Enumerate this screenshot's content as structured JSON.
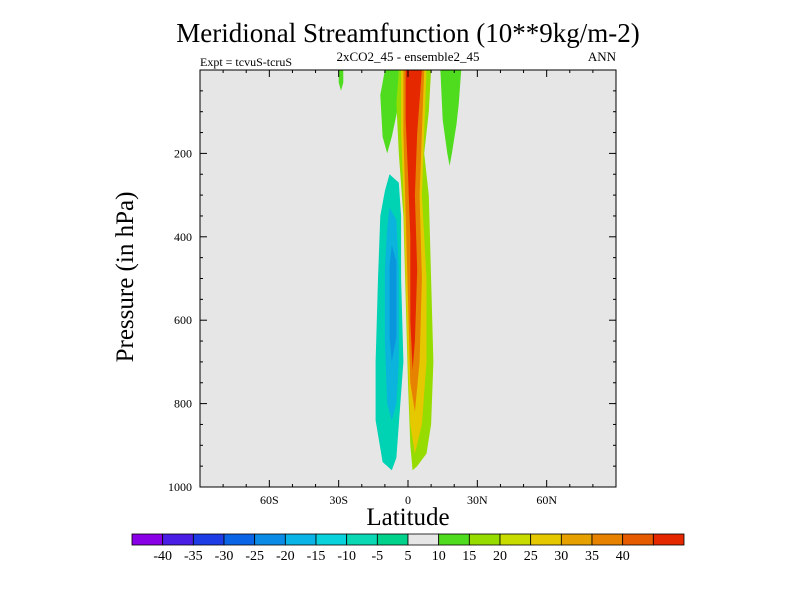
{
  "chart_data": {
    "type": "heatmap",
    "title": "Meridional Streamfunction (10**9kg/m-2)",
    "subtitle_center": "2xCO2_45 - ensemble2_45",
    "subtitle_left": "Expt = tcvuS-tcruS",
    "subtitle_right": "ANN",
    "xlabel": "Latitude",
    "ylabel": "Pressure (in hPa)",
    "xlim": [
      -90,
      90
    ],
    "ylim": [
      1000,
      0
    ],
    "y_inverted": true,
    "background_color": "#e6e6e6",
    "x_ticks": [
      {
        "value": -60,
        "label": "60S"
      },
      {
        "value": -30,
        "label": "30S"
      },
      {
        "value": 0,
        "label": "0"
      },
      {
        "value": 30,
        "label": "30N"
      },
      {
        "value": 60,
        "label": "60N"
      }
    ],
    "y_ticks": [
      {
        "value": 200,
        "label": "200"
      },
      {
        "value": 400,
        "label": "400"
      },
      {
        "value": 600,
        "label": "600"
      },
      {
        "value": 800,
        "label": "800"
      },
      {
        "value": 1000,
        "label": "1000"
      }
    ],
    "colorbar": {
      "levels": [
        -40,
        -35,
        -30,
        -25,
        -20,
        -15,
        -10,
        -5,
        5,
        10,
        15,
        20,
        25,
        30,
        35,
        40
      ],
      "labels": [
        "-40",
        "-35",
        "-30",
        "-25",
        "-20",
        "-15",
        "-10",
        "-5",
        "5",
        "10",
        "15",
        "20",
        "25",
        "30",
        "35",
        "40"
      ],
      "colors": [
        "#8a00e6",
        "#4b1ee6",
        "#1e3ce6",
        "#0a64e6",
        "#0a8ce6",
        "#0ab4e6",
        "#0ad2dc",
        "#0ad7b4",
        "#00d28c",
        "#e6e6e6",
        "#50dc1e",
        "#96dc00",
        "#c8dc00",
        "#e6c800",
        "#e6a000",
        "#e68200",
        "#e65a00",
        "#e62800"
      ]
    },
    "regions": [
      {
        "name": "southern negative cell",
        "value": -10,
        "color": "#00d2b4",
        "outline": [
          [
            -8,
            250
          ],
          [
            -4,
            270
          ],
          [
            -3,
            350
          ],
          [
            -3,
            500
          ],
          [
            -2,
            700
          ],
          [
            -4,
            850
          ],
          [
            -5,
            930
          ],
          [
            -7,
            960
          ],
          [
            -11,
            940
          ],
          [
            -14,
            840
          ],
          [
            -14,
            700
          ],
          [
            -13,
            500
          ],
          [
            -12,
            350
          ],
          [
            -10,
            290
          ]
        ]
      },
      {
        "name": "southern negative core",
        "value": -15,
        "color": "#0ab4dc",
        "outline": [
          [
            -8,
            330
          ],
          [
            -5,
            360
          ],
          [
            -4,
            480
          ],
          [
            -4,
            700
          ],
          [
            -5,
            800
          ],
          [
            -7,
            840
          ],
          [
            -9,
            800
          ],
          [
            -10,
            650
          ],
          [
            -10,
            480
          ],
          [
            -9,
            380
          ]
        ]
      },
      {
        "name": "southern negative inner core",
        "value": -20,
        "color": "#0a96dc",
        "outline": [
          [
            -7,
            420
          ],
          [
            -5,
            460
          ],
          [
            -5,
            640
          ],
          [
            -7,
            700
          ],
          [
            -8,
            640
          ],
          [
            -8,
            470
          ]
        ]
      },
      {
        "name": "left upper positive branch",
        "value": 5,
        "color": "#50dc1e",
        "outline": [
          [
            -10,
            0
          ],
          [
            -4,
            0
          ],
          [
            -4,
            80
          ],
          [
            -7,
            160
          ],
          [
            -9,
            200
          ],
          [
            -11,
            160
          ],
          [
            -12,
            60
          ]
        ]
      },
      {
        "name": "small upper positive blob",
        "value": 5,
        "color": "#50dc1e",
        "outline": [
          [
            -30,
            0
          ],
          [
            -28,
            0
          ],
          [
            -28,
            30
          ],
          [
            -29,
            50
          ],
          [
            -30,
            30
          ]
        ]
      },
      {
        "name": "right upper positive branch",
        "value": 5,
        "color": "#50dc1e",
        "outline": [
          [
            14,
            0
          ],
          [
            23,
            0
          ],
          [
            22,
            80
          ],
          [
            21,
            130
          ],
          [
            19,
            200
          ],
          [
            18,
            230
          ],
          [
            17,
            200
          ],
          [
            15,
            120
          ]
        ]
      },
      {
        "name": "central positive cell",
        "value": 5,
        "color": "#96dc00",
        "outline": [
          [
            -4,
            0
          ],
          [
            10,
            0
          ],
          [
            9,
            100
          ],
          [
            7,
            200
          ],
          [
            9,
            300
          ],
          [
            10,
            500
          ],
          [
            11,
            700
          ],
          [
            10,
            850
          ],
          [
            8,
            920
          ],
          [
            4,
            950
          ],
          [
            2,
            960
          ],
          [
            1,
            900
          ],
          [
            0,
            750
          ],
          [
            -1,
            550
          ],
          [
            -2,
            350
          ],
          [
            -4,
            200
          ],
          [
            -5,
            80
          ]
        ]
      },
      {
        "name": "central positive 15",
        "value": 15,
        "color": "#e6c800",
        "outline": [
          [
            -3,
            0
          ],
          [
            8,
            0
          ],
          [
            7,
            150
          ],
          [
            6,
            300
          ],
          [
            8,
            500
          ],
          [
            8,
            700
          ],
          [
            6,
            850
          ],
          [
            3,
            920
          ],
          [
            1,
            850
          ],
          [
            0,
            700
          ],
          [
            -1,
            500
          ],
          [
            -2,
            300
          ],
          [
            -3,
            150
          ]
        ]
      },
      {
        "name": "central positive 25",
        "value": 25,
        "color": "#e68200",
        "outline": [
          [
            -2,
            0
          ],
          [
            7,
            0
          ],
          [
            6,
            150
          ],
          [
            5,
            300
          ],
          [
            6,
            500
          ],
          [
            5,
            700
          ],
          [
            3,
            820
          ],
          [
            1,
            750
          ],
          [
            0,
            550
          ],
          [
            -1,
            350
          ],
          [
            -2,
            150
          ]
        ]
      },
      {
        "name": "central positive core",
        "value": 35,
        "color": "#e62800",
        "outline": [
          [
            -1,
            0
          ],
          [
            6,
            0
          ],
          [
            4,
            150
          ],
          [
            3,
            300
          ],
          [
            4,
            480
          ],
          [
            3,
            650
          ],
          [
            2,
            720
          ],
          [
            1,
            600
          ],
          [
            1,
            400
          ],
          [
            0,
            250
          ],
          [
            -1,
            120
          ]
        ]
      }
    ]
  }
}
